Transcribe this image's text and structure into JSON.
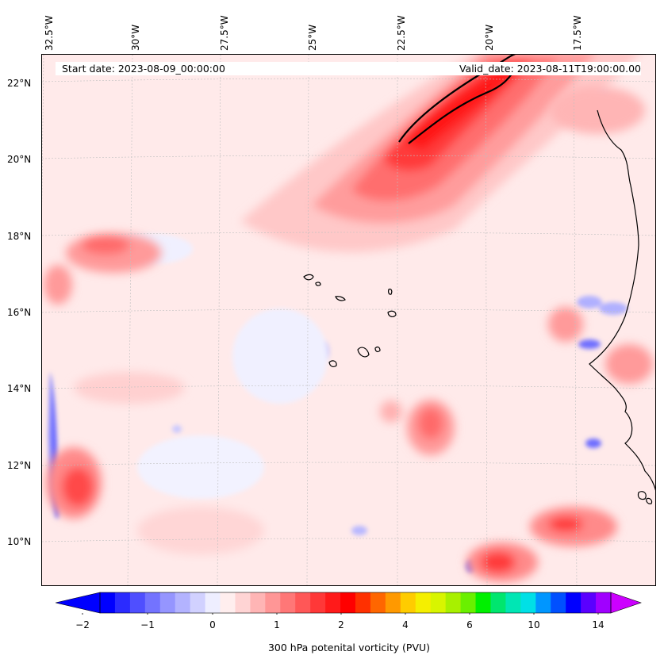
{
  "header": {
    "start_date": "Start date: 2023-08-09_00:00:00",
    "valid_date": "Valid_date: 2023-08-11T19:00:00.00"
  },
  "axes": {
    "longitude_labels": [
      "32.5°W",
      "30°W",
      "27.5°W",
      "25°W",
      "22.5°W",
      "20°W",
      "17.5°W"
    ],
    "latitude_labels": [
      "22°N",
      "20°N",
      "18°N",
      "16°N",
      "14°N",
      "12°N",
      "10°N"
    ]
  },
  "colorbar": {
    "label": "300 hPa potenital vorticity (PVU)",
    "tick_labels": [
      "−2",
      "−1",
      "0",
      "1",
      "2",
      "4",
      "6",
      "10",
      "14"
    ],
    "colors": [
      "#0000ff",
      "#2b2bff",
      "#4f4fff",
      "#7373ff",
      "#9595ff",
      "#b3b3ff",
      "#d1d1ff",
      "#eeeeff",
      "#ffeeee",
      "#ffd4d4",
      "#ffb5b5",
      "#ff9696",
      "#ff7777",
      "#ff5757",
      "#ff3838",
      "#ff1a1a",
      "#ff0000",
      "#ff3000",
      "#ff6600",
      "#ff9900",
      "#ffcc00",
      "#f5ef00",
      "#d8f500",
      "#a8f000",
      "#6af000",
      "#00f000",
      "#00e66e",
      "#00e6b4",
      "#00e0e6",
      "#0096ff",
      "#0050ff",
      "#0000ff",
      "#5a00ff",
      "#a000ff"
    ]
  },
  "legend_map": {
    "extend_low_color": "#0000ff",
    "extend_high_color": "#cc00ff"
  }
}
